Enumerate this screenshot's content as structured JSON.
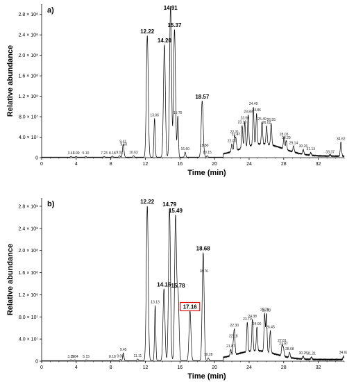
{
  "chart_data": [
    {
      "type": "line",
      "panel_label": "a)",
      "xlabel": "Time (min)",
      "ylabel": "Relative abundance",
      "xlim": [
        0,
        35
      ],
      "ylim": [
        0,
        300000000.0
      ],
      "x_ticks": [
        0,
        4,
        8,
        12,
        16,
        20,
        24,
        28,
        32
      ],
      "x_tick_labels": [
        "0",
        "4",
        "8",
        "12",
        "16",
        "20",
        "24",
        "28",
        "32"
      ],
      "y_ticks": [
        0,
        40000000.0,
        80000000.0,
        120000000.0,
        160000000.0,
        200000000.0,
        240000000.0,
        280000000.0
      ],
      "y_tick_labels": [
        "0",
        "4.0 × 10⁷",
        "8.0 × 10⁷",
        "1.2 × 10⁸",
        "1.6 × 10⁸",
        "2.0 × 10⁸",
        "2.4 × 10⁸",
        "2.8 × 10⁸"
      ],
      "peaks": [
        {
          "rt": 3.41,
          "label": "3.41",
          "height": 1500000.0,
          "major": false
        },
        {
          "rt": 3.99,
          "label": "3.99",
          "height": 1500000.0,
          "major": false
        },
        {
          "rt": 5.1,
          "label": "5.10",
          "height": 1500000.0,
          "major": false
        },
        {
          "rt": 7.23,
          "label": "7.23",
          "height": 1500000.0,
          "major": false
        },
        {
          "rt": 8.18,
          "label": "8.18",
          "height": 2000000.0,
          "major": false
        },
        {
          "rt": 9.02,
          "label": "9.02",
          "height": 3000000.0,
          "major": false
        },
        {
          "rt": 9.41,
          "label": "9.41",
          "height": 20000000.0,
          "major": false
        },
        {
          "rt": 9.5,
          "label": "9.50",
          "height": 10000000.0,
          "major": false
        },
        {
          "rt": 10.63,
          "label": "10.63",
          "height": 3000000.0,
          "major": false
        },
        {
          "rt": 12.22,
          "label": "12.22",
          "height": 238000000.0,
          "major": true
        },
        {
          "rt": 13.06,
          "label": "13.06",
          "height": 76000000.0,
          "major": false
        },
        {
          "rt": 14.2,
          "label": "14.20",
          "height": 220000000.0,
          "major": true
        },
        {
          "rt": 14.91,
          "label": "14.91",
          "height": 296000000.0,
          "major": true
        },
        {
          "rt": 15.37,
          "label": "15.37",
          "height": 250000000.0,
          "major": true
        },
        {
          "rt": 15.75,
          "label": "15.75",
          "height": 80000000.0,
          "major": false
        },
        {
          "rt": 16.6,
          "label": "16.60",
          "height": 10000000.0,
          "major": false
        },
        {
          "rt": 18.57,
          "label": "18.57",
          "height": 110000000.0,
          "major": true
        },
        {
          "rt": 18.8,
          "label": "18.80",
          "height": 4000000.0,
          "major": false
        },
        {
          "rt": 19.15,
          "label": "19.15",
          "height": 3000000.0,
          "major": false
        },
        {
          "rt": 22.0,
          "label": "22.00",
          "height": 15000000.0,
          "major": false
        },
        {
          "rt": 22.31,
          "label": "22.31",
          "height": 28000000.0,
          "major": false
        },
        {
          "rt": 22.47,
          "label": "22.47",
          "height": 22000000.0,
          "major": false
        },
        {
          "rt": 23.19,
          "label": "23.19",
          "height": 45000000.0,
          "major": false
        },
        {
          "rt": 23.5,
          "label": "23.50",
          "height": 50000000.0,
          "major": false
        },
        {
          "rt": 23.89,
          "label": "23.89",
          "height": 62000000.0,
          "major": false
        },
        {
          "rt": 24.49,
          "label": "24.49",
          "height": 74000000.0,
          "major": false
        },
        {
          "rt": 24.86,
          "label": "24.86",
          "height": 60000000.0,
          "major": false
        },
        {
          "rt": 25.49,
          "label": "25.49",
          "height": 44000000.0,
          "major": false
        },
        {
          "rt": 26.02,
          "label": "26.02",
          "height": 36000000.0,
          "major": false
        },
        {
          "rt": 26.55,
          "label": "26.55",
          "height": 42000000.0,
          "major": false
        },
        {
          "rt": 28.03,
          "label": "28.03",
          "height": 24000000.0,
          "major": false
        },
        {
          "rt": 28.29,
          "label": "28.29",
          "height": 18000000.0,
          "major": false
        },
        {
          "rt": 29.14,
          "label": "29.14",
          "height": 12000000.0,
          "major": false
        },
        {
          "rt": 30.26,
          "label": "30.26",
          "height": 9000000.0,
          "major": false
        },
        {
          "rt": 31.13,
          "label": "31.13",
          "height": 5000000.0,
          "major": false
        },
        {
          "rt": 33.37,
          "label": "33.37",
          "height": 3000000.0,
          "major": false
        },
        {
          "rt": 34.62,
          "label": "34.62",
          "height": 28000000.0,
          "major": false
        }
      ],
      "hump": {
        "center": 25.5,
        "height": 24000000.0,
        "width": 3.5,
        "start": 21
      }
    },
    {
      "type": "line",
      "panel_label": "b)",
      "xlabel": "Time (min)",
      "ylabel": "Relative abundance",
      "xlim": [
        0,
        35
      ],
      "ylim": [
        0,
        295000000.0
      ],
      "x_ticks": [
        0,
        4,
        8,
        12,
        16,
        20,
        24,
        28,
        32
      ],
      "x_tick_labels": [
        "0",
        "4",
        "8",
        "12",
        "16",
        "20",
        "24",
        "28",
        "32"
      ],
      "y_ticks": [
        0,
        40000000.0,
        80000000.0,
        120000000.0,
        160000000.0,
        200000000.0,
        240000000.0,
        280000000.0
      ],
      "y_tick_labels": [
        "0",
        "4.0 × 10⁷",
        "8.0 × 10⁷",
        "1.2 × 10⁸",
        "1.6 × 10⁸",
        "2.0 × 10⁸",
        "2.4 × 10⁸",
        "2.8 × 10⁸"
      ],
      "peaks": [
        {
          "rt": 3.39,
          "label": "3.39",
          "height": 1500000.0,
          "major": false
        },
        {
          "rt": 3.84,
          "label": "3.84",
          "height": 1500000.0,
          "major": false
        },
        {
          "rt": 5.15,
          "label": "5.15",
          "height": 1500000.0,
          "major": false
        },
        {
          "rt": 8.18,
          "label": "8.18",
          "height": 1500000.0,
          "major": false
        },
        {
          "rt": 9.09,
          "label": "9.09",
          "height": 2000000.0,
          "major": false
        },
        {
          "rt": 9.45,
          "label": "9.45",
          "height": 14000000.0,
          "major": false
        },
        {
          "rt": 11.11,
          "label": "11.11",
          "height": 3000000.0,
          "major": false
        },
        {
          "rt": 12.22,
          "label": "12.22",
          "height": 280000000.0,
          "major": true
        },
        {
          "rt": 13.13,
          "label": "13.13",
          "height": 100000000.0,
          "major": false
        },
        {
          "rt": 14.15,
          "label": "14.15",
          "height": 130000000.0,
          "major": true
        },
        {
          "rt": 14.79,
          "label": "14.79",
          "height": 275000000.0,
          "major": true
        },
        {
          "rt": 15.49,
          "label": "15.49",
          "height": 260000000.0,
          "major": true
        },
        {
          "rt": 15.78,
          "label": "15.78",
          "height": 120000000.0,
          "major": true
        },
        {
          "rt": 17.16,
          "label": "17.16",
          "height": 90000000.0,
          "major": true,
          "boxed": true
        },
        {
          "rt": 18.68,
          "label": "18.68",
          "height": 190000000.0,
          "major": true
        },
        {
          "rt": 18.76,
          "label": "18.76",
          "height": 10000000.0,
          "major": false
        },
        {
          "rt": 19.28,
          "label": "19.28",
          "height": 5000000.0,
          "major": false
        },
        {
          "rt": 21.87,
          "label": "21.87",
          "height": 11000000.0,
          "major": false
        },
        {
          "rt": 22.18,
          "label": "22.18",
          "height": 20000000.0,
          "major": false
        },
        {
          "rt": 22.3,
          "label": "22.30",
          "height": 42000000.0,
          "major": false
        },
        {
          "rt": 23.79,
          "label": "23.79",
          "height": 54000000.0,
          "major": false
        },
        {
          "rt": 24.38,
          "label": "24.38",
          "height": 58000000.0,
          "major": false
        },
        {
          "rt": 24.9,
          "label": "24.90",
          "height": 44000000.0,
          "major": false
        },
        {
          "rt": 25.79,
          "label": "25.79",
          "height": 68000000.0,
          "major": false
        },
        {
          "rt": 26.0,
          "label": "26.00",
          "height": 70000000.0,
          "major": false
        },
        {
          "rt": 26.45,
          "label": "26.45",
          "height": 40000000.0,
          "major": false
        },
        {
          "rt": 27.81,
          "label": "27.81",
          "height": 20000000.0,
          "major": false
        },
        {
          "rt": 27.97,
          "label": "27.97",
          "height": 15000000.0,
          "major": false
        },
        {
          "rt": 28.68,
          "label": "28.68",
          "height": 9000000.0,
          "major": false
        },
        {
          "rt": 30.25,
          "label": "30.25",
          "height": 5000000.0,
          "major": false
        },
        {
          "rt": 31.21,
          "label": "31.21",
          "height": 4000000.0,
          "major": false
        },
        {
          "rt": 34.92,
          "label": "34.92",
          "height": 6000000.0,
          "major": false
        }
      ],
      "hump": {
        "center": 24.8,
        "height": 16000000.0,
        "width": 3.2,
        "start": 21
      }
    }
  ]
}
